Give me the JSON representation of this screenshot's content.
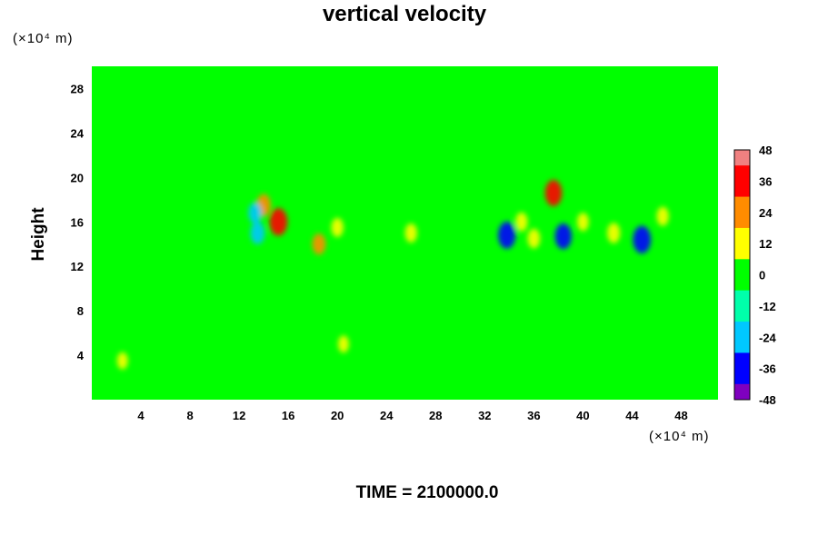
{
  "chart_data": {
    "type": "heatmap",
    "title": "vertical velocity",
    "xlabel": "",
    "ylabel": "Height",
    "x_unit": "(×10⁴ m)",
    "y_unit": "(×10⁴ m)",
    "x_ticks": [
      4,
      8,
      12,
      16,
      20,
      24,
      28,
      32,
      36,
      40,
      44,
      48
    ],
    "y_ticks": [
      4,
      8,
      12,
      16,
      20,
      24,
      28
    ],
    "xlim": [
      0,
      51
    ],
    "ylim": [
      0,
      30
    ],
    "colorbar": {
      "ticks": [
        48,
        36,
        24,
        12,
        0,
        -12,
        -24,
        -36,
        -48
      ],
      "range": [
        -48,
        48
      ],
      "colors": [
        "#f08080",
        "#ff0000",
        "#ff8c00",
        "#ffff00",
        "#00ff00",
        "#00ffaa",
        "#00c8ff",
        "#0000ff",
        "#7f00bf"
      ]
    },
    "background_value": 0,
    "features": [
      {
        "x": 15.2,
        "y": 16.0,
        "value": 40
      },
      {
        "x": 14.0,
        "y": 17.5,
        "value": 24
      },
      {
        "x": 13.3,
        "y": 16.8,
        "value": -20
      },
      {
        "x": 13.5,
        "y": 15.0,
        "value": -24
      },
      {
        "x": 18.5,
        "y": 14.0,
        "value": 20
      },
      {
        "x": 20.0,
        "y": 15.5,
        "value": 14
      },
      {
        "x": 26.0,
        "y": 15.0,
        "value": 14
      },
      {
        "x": 33.8,
        "y": 14.8,
        "value": -38
      },
      {
        "x": 35.0,
        "y": 16.0,
        "value": 14
      },
      {
        "x": 36.0,
        "y": 14.5,
        "value": 16
      },
      {
        "x": 37.6,
        "y": 18.6,
        "value": 36
      },
      {
        "x": 38.4,
        "y": 14.7,
        "value": -34
      },
      {
        "x": 40.0,
        "y": 16.0,
        "value": 12
      },
      {
        "x": 42.5,
        "y": 15.0,
        "value": 18
      },
      {
        "x": 44.8,
        "y": 14.4,
        "value": -40
      },
      {
        "x": 46.5,
        "y": 16.5,
        "value": 14
      },
      {
        "x": 2.5,
        "y": 3.5,
        "value": 8
      },
      {
        "x": 20.5,
        "y": 5.0,
        "value": 8
      }
    ]
  },
  "footer": {
    "time_label": "TIME = 2100000.0"
  }
}
